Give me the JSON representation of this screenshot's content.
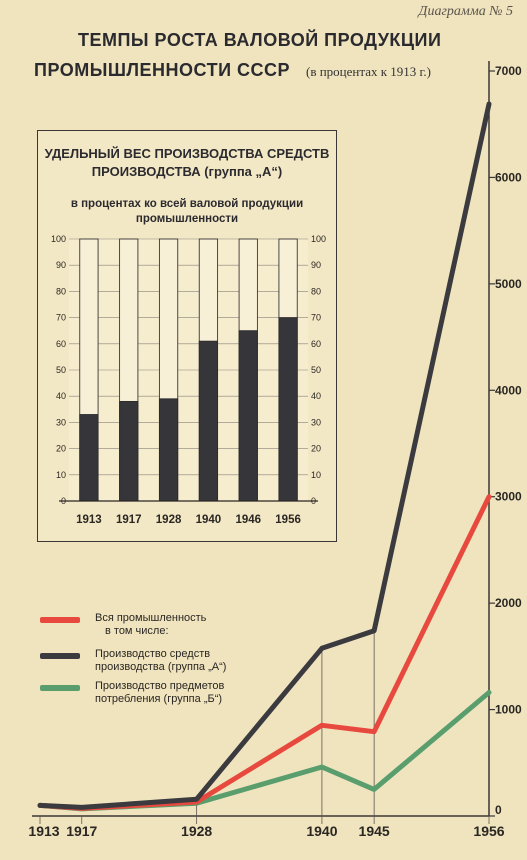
{
  "header": {
    "diagram_number": "Диаграмма № 5",
    "title_line1": "ТЕМПЫ РОСТА ВАЛОВОЙ ПРОДУКЦИИ",
    "title_line2": "ПРОМЫШЛЕННОСТИ СССР",
    "unit_note": "(в процентах к 1913 г.)"
  },
  "legend": {
    "items": [
      {
        "line1": "Вся промышленность",
        "line2": "в том числе:",
        "color": "#e8493f"
      },
      {
        "line1": "Производство средств",
        "line2": "производства (группа „А“)",
        "color": "#3b3b3f"
      },
      {
        "line1": "Производство предметов",
        "line2": "потребления (группа „Б“)",
        "color": "#5a9e6e"
      }
    ]
  },
  "chart_data": [
    {
      "type": "line",
      "title": "ТЕМПЫ РОСТА ВАЛОВОЙ ПРОДУКЦИИ ПРОМЫШЛЕННОСТИ СССР",
      "subtitle": "(в процентах к 1913 г.)",
      "x": [
        1913,
        1917,
        1928,
        1940,
        1945,
        1956
      ],
      "x_tick_labels": [
        "1913",
        "1917",
        "1928",
        "1940",
        "1945",
        "1956"
      ],
      "ylim": [
        0,
        7000
      ],
      "y_ticks": [
        0,
        1000,
        2000,
        3000,
        4000,
        5000,
        6000,
        7000
      ],
      "y_axis_side": "right",
      "grid": false,
      "series": [
        {
          "name": "Вся промышленность",
          "color": "#e8493f",
          "values": [
            100,
            71,
            132,
            852,
            792,
            3000
          ]
        },
        {
          "name": "Производство средств производства (группа „А“)",
          "color": "#3b3b3f",
          "values": [
            100,
            81,
            158,
            1576,
            1740,
            6690
          ]
        },
        {
          "name": "Производство предметов потребления (группа „Б“)",
          "color": "#5a9e6e",
          "values": [
            100,
            67,
            120,
            460,
            250,
            1160
          ]
        }
      ]
    },
    {
      "type": "bar",
      "title": "УДЕЛЬНЫЙ ВЕС ПРОИЗВОДСТВА СРЕДСТВ ПРОИЗВОДСТВА (группа „А“)",
      "subtitle": "в процентах ко всей валовой продукции промышленности",
      "categories": [
        "1913",
        "1917",
        "1928",
        "1940",
        "1946",
        "1956"
      ],
      "values": [
        33,
        38,
        39,
        61,
        65,
        70
      ],
      "ylim": [
        0,
        100
      ],
      "y_ticks": [
        0,
        10,
        20,
        30,
        40,
        50,
        60,
        70,
        80,
        90,
        100
      ],
      "grid": true
    }
  ]
}
